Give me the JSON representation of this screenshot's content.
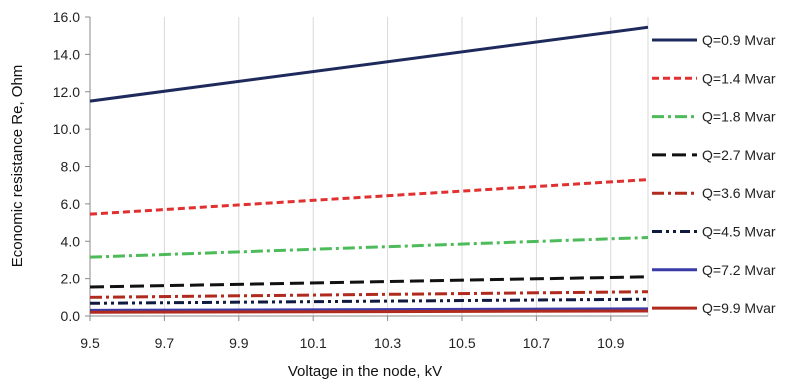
{
  "chart_data": {
    "type": "line",
    "xlabel": "Voltage in the node, kV",
    "ylabel": "Economic resistance Re, Ohm",
    "xlim": [
      9.5,
      11.0
    ],
    "ylim": [
      0,
      16
    ],
    "x_ticks": [
      "9.5",
      "9.7",
      "9.9",
      "10.1",
      "10.3",
      "10.5",
      "10.7",
      "10.9"
    ],
    "y_ticks": [
      "0.0",
      "2.0",
      "4.0",
      "6.0",
      "8.0",
      "10.0",
      "12.0",
      "14.0",
      "16.0"
    ],
    "grid": "vertical",
    "legend_position": "right",
    "series": [
      {
        "name": "Q=0.9 Mvar",
        "color": "#1f2a5c",
        "dash": "solid",
        "x": [
          9.5,
          11.0
        ],
        "values": [
          11.5,
          15.45
        ]
      },
      {
        "name": "Q=1.4 Mvar",
        "color": "#e03030",
        "dash": "short-dash",
        "x": [
          9.5,
          11.0
        ],
        "values": [
          5.45,
          7.3
        ]
      },
      {
        "name": "Q=1.8 Mvar",
        "color": "#4dbb5a",
        "dash": "dash-dot",
        "x": [
          9.5,
          11.0
        ],
        "values": [
          3.15,
          4.2
        ]
      },
      {
        "name": "Q=2.7 Mvar",
        "color": "#111111",
        "dash": "long-dash",
        "x": [
          9.5,
          11.0
        ],
        "values": [
          1.55,
          2.1
        ]
      },
      {
        "name": "Q=3.6 Mvar",
        "color": "#b02a1e",
        "dash": "dash-dot",
        "x": [
          9.5,
          11.0
        ],
        "values": [
          1.0,
          1.3
        ]
      },
      {
        "name": "Q=4.5 Mvar",
        "color": "#101a40",
        "dash": "dash-dot-dot",
        "x": [
          9.5,
          11.0
        ],
        "values": [
          0.68,
          0.9
        ]
      },
      {
        "name": "Q=7.2 Mvar",
        "color": "#3a3aa8",
        "dash": "solid",
        "x": [
          9.5,
          11.0
        ],
        "values": [
          0.3,
          0.38
        ]
      },
      {
        "name": "Q=9.9 Mvar",
        "color": "#b02a1e",
        "dash": "solid",
        "x": [
          9.5,
          11.0
        ],
        "values": [
          0.2,
          0.27
        ]
      }
    ]
  }
}
